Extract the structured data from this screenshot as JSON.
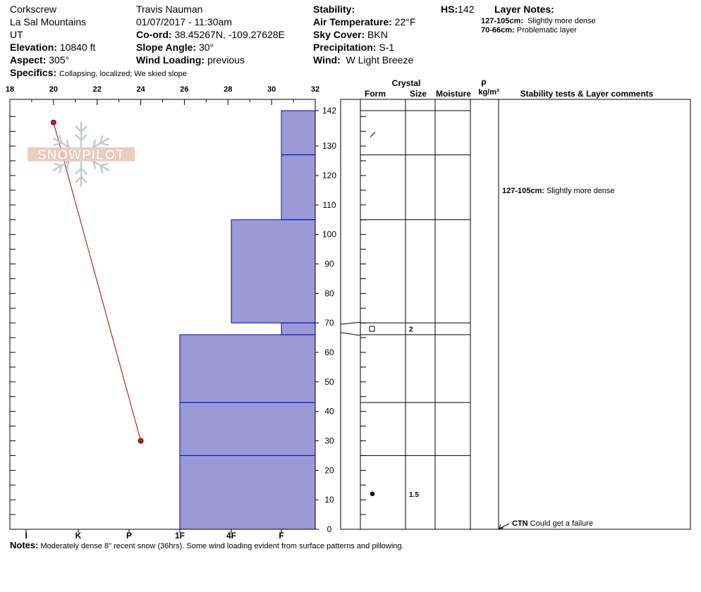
{
  "header": {
    "location": "Corkscrew",
    "range": "La Sal Mountains",
    "state": "UT",
    "elevation_label": "Elevation:",
    "elevation": "10840 ft",
    "aspect_label": "Aspect:",
    "aspect": "305°",
    "observer": "Travis Nauman",
    "datetime": "01/07/2017 - 11:30am",
    "coord_label": "Co-ord:",
    "coord": "38.45267N, -109.27628E",
    "slope_label": "Slope Angle:",
    "slope": "30°",
    "wind_loading_label": "Wind Loading:",
    "wind_loading": "previous",
    "stability_label": "Stability:",
    "air_temp_label": "Air Temperature:",
    "air_temp": "22°F",
    "sky_label": "Sky Cover:",
    "sky": "BKN",
    "precip_label": "Precipitation:",
    "precip": "S-1",
    "wind_label": "Wind:",
    "wind": "W Light Breeze",
    "hs_label": "HS:",
    "hs": "142",
    "layer_notes_label": "Layer Notes:",
    "layer_notes": [
      {
        "range": "127-105cm:",
        "text": "Slightly more dense"
      },
      {
        "range": "70-66cm:",
        "text": "Problematic layer"
      }
    ],
    "specifics_label": "Specifics:",
    "specifics": "Collapsing, localized;  We skied slope"
  },
  "logo": {
    "text": "SNOWPILOT"
  },
  "columns": {
    "crystal": "Crystal",
    "form": "Form",
    "size": "Size",
    "moisture": "Moisture",
    "rho": "ρ",
    "density_unit": "kg/m³",
    "stability": "Stability tests & Layer comments"
  },
  "chart_data": {
    "type": "snow_profile",
    "depth_axis": {
      "label": "",
      "min": 0,
      "max": 142,
      "ticks": [
        0,
        10,
        20,
        30,
        40,
        50,
        60,
        70,
        80,
        90,
        100,
        110,
        120,
        130,
        142
      ]
    },
    "temperature_axis": {
      "unit": "°F",
      "min": 18,
      "max": 32,
      "ticks": [
        18,
        20,
        22,
        24,
        26,
        28,
        30,
        32
      ]
    },
    "hardness_axis": {
      "ticks": [
        "I",
        "K",
        "P",
        "1F",
        "4F",
        "F"
      ]
    },
    "temperature_profile": [
      {
        "depth": 138,
        "temp": 20
      },
      {
        "depth": 30,
        "temp": 24
      }
    ],
    "layers": [
      {
        "top": 142,
        "bottom": 127,
        "hardness": "F",
        "form": "/",
        "size": ""
      },
      {
        "top": 127,
        "bottom": 105,
        "hardness": "F",
        "form": "",
        "size": ""
      },
      {
        "top": 105,
        "bottom": 70,
        "hardness": "4F",
        "form": "",
        "size": ""
      },
      {
        "top": 70,
        "bottom": 66,
        "hardness": "F",
        "form": "□",
        "size": "2"
      },
      {
        "top": 66,
        "bottom": 43,
        "hardness": "1F",
        "form": "",
        "size": ""
      },
      {
        "top": 43,
        "bottom": 25,
        "hardness": "1F",
        "form": "",
        "size": ""
      },
      {
        "top": 25,
        "bottom": 0,
        "hardness": "1F",
        "form": "●",
        "size": "1.5"
      }
    ],
    "comments": [
      {
        "depth": 127,
        "range": "127-105cm:",
        "text": "Slightly more dense"
      }
    ],
    "tests": [
      {
        "depth": 0,
        "code": "CTN",
        "text": "Could get a failure"
      }
    ]
  },
  "notes": {
    "label": "Notes:",
    "text": "Moderately dense 8\" recent snow (36hrs). Some wind loading evident from surface patterns and pillowing."
  }
}
